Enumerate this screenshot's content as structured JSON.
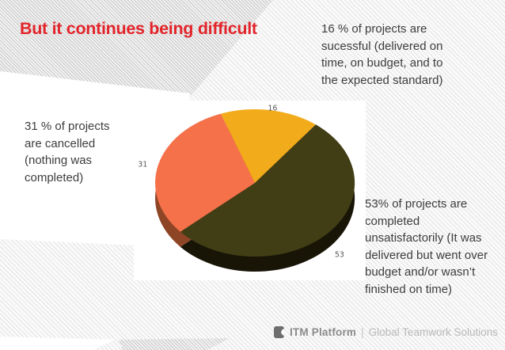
{
  "slide": {
    "title": "But it continues being difficult",
    "title_color": "#e2242a"
  },
  "annotations": {
    "successful": "16 % of projects are sucessful (delivered on time, on budget, and to the expected standard)",
    "cancelled": "31 % of projects are cancelled (nothing was completed)",
    "unsatisfactory": "53% of projects are completed unsatisfactorily (It was delivered but went over budget and/or wasn’t finished on time)"
  },
  "chart_data": {
    "type": "pie",
    "style": "3d",
    "title": "",
    "legend": "none",
    "start_angle_deg": -20,
    "categories": [
      "Successful projects",
      "Completed unsatisfactorily",
      "Cancelled projects"
    ],
    "values": [
      16,
      53,
      31
    ],
    "unit": "%",
    "colors": [
      "#f2ab1b",
      "#413e16",
      "#f4714a"
    ],
    "side_colors": [
      "#b97c10",
      "#181507",
      "#8e4526"
    ],
    "label_color": "#595959",
    "background": "#ffffff"
  },
  "footer": {
    "brand": "ITM Platform",
    "divider": "|",
    "tagline": "Global Teamwork Solutions",
    "icon": "itm-platform-logo"
  }
}
